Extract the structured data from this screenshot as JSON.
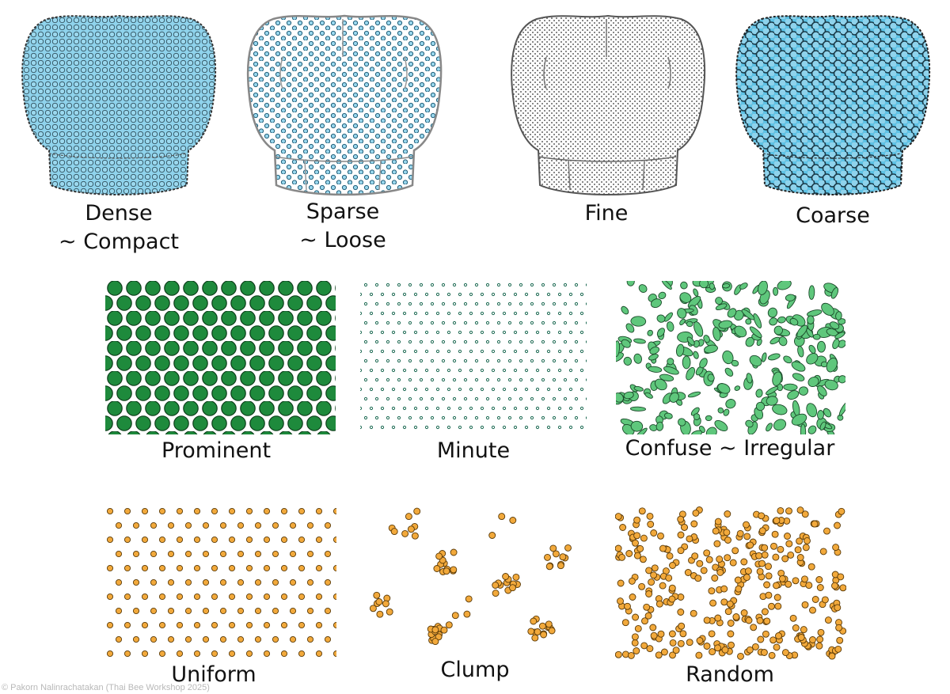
{
  "colors": {
    "blue_fill": "#8fd3ec",
    "blue_dot": "#5ec3e6",
    "green_dark": "#1e8a3c",
    "green_light": "#5fc77c",
    "orange": "#f2a93b",
    "outline": "#333333"
  },
  "shield_row": [
    {
      "label_line1": "Dense",
      "label_line2": "~ Compact"
    },
    {
      "label_line1": "Sparse",
      "label_line2": "~ Loose"
    },
    {
      "label_line1": "Fine",
      "label_line2": ""
    },
    {
      "label_line1": "Coarse",
      "label_line2": ""
    }
  ],
  "green_row": [
    {
      "label": "Prominent"
    },
    {
      "label": "Minute"
    },
    {
      "label": "Confuse ~ Irregular"
    }
  ],
  "orange_row": [
    {
      "label": "Uniform"
    },
    {
      "label": "Clump"
    },
    {
      "label": "Random"
    }
  ],
  "credit": "© Pakorn Nalinrachatakan (Thai Bee Workshop 2025)"
}
